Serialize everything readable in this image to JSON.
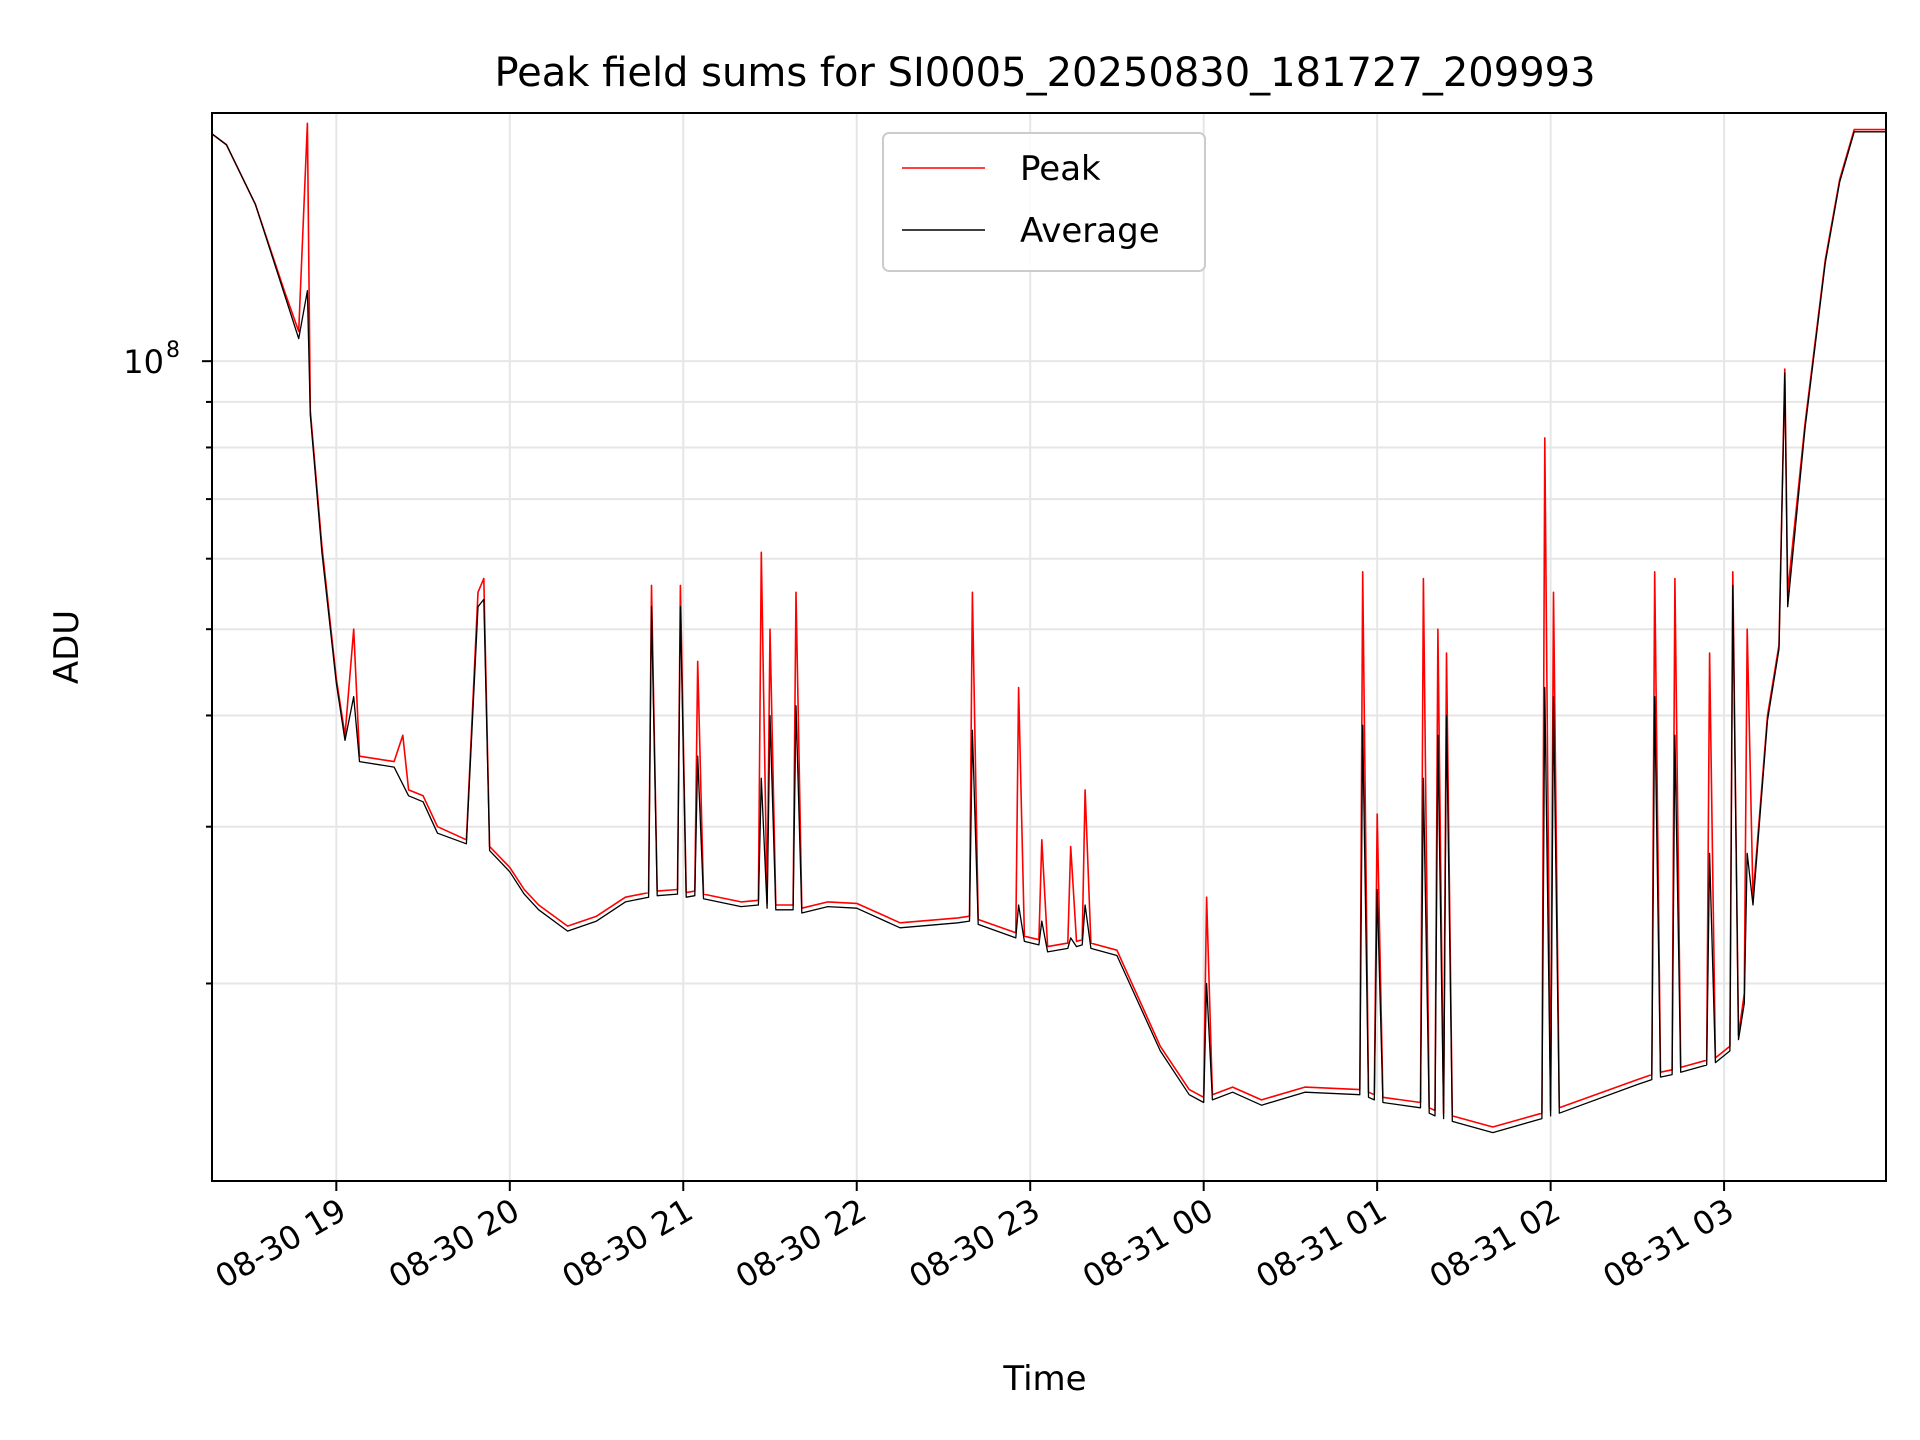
{
  "chart_data": {
    "type": "line",
    "title": "Peak field sums for SI0005_20250830_181727_209993",
    "xlabel": "Time",
    "ylabel": "ADU",
    "y_scale": "log",
    "ylim": [
      12000000,
      190000000
    ],
    "xlim": [
      "2025-08-30 18:17",
      "2025-08-31 03:56"
    ],
    "grid": true,
    "legend_position": "upper center",
    "x_ticks": [
      "08-30 19",
      "08-30 20",
      "08-30 21",
      "08-30 22",
      "08-30 23",
      "08-31 00",
      "08-31 01",
      "08-31 02",
      "08-31 03"
    ],
    "x_tick_times": [
      "2025-08-30 19:00",
      "2025-08-30 20:00",
      "2025-08-30 21:00",
      "2025-08-30 22:00",
      "2025-08-30 23:00",
      "2025-08-31 00:00",
      "2025-08-31 01:00",
      "2025-08-31 02:00",
      "2025-08-31 03:00"
    ],
    "y_major_ticks": [
      {
        "value": 100000000,
        "label_base": "10",
        "label_exp": "8"
      }
    ],
    "series": [
      {
        "name": "Peak",
        "color": "#ff0000",
        "points": [
          [
            "2025-08-30 18:17",
            180000000
          ],
          [
            "2025-08-30 18:22",
            175000000
          ],
          [
            "2025-08-30 18:32",
            150000000
          ],
          [
            "2025-08-30 18:42",
            120000000
          ],
          [
            "2025-08-30 18:47",
            108000000
          ],
          [
            "2025-08-30 18:50",
            185000000
          ],
          [
            "2025-08-30 18:51",
            88000000
          ],
          [
            "2025-08-30 18:55",
            62000000
          ],
          [
            "2025-08-30 19:00",
            44000000
          ],
          [
            "2025-08-30 19:03",
            38000000
          ],
          [
            "2025-08-30 19:06",
            50000000
          ],
          [
            "2025-08-30 19:08",
            36000000
          ],
          [
            "2025-08-30 19:20",
            35500000
          ],
          [
            "2025-08-30 19:23",
            38000000
          ],
          [
            "2025-08-30 19:25",
            33000000
          ],
          [
            "2025-08-30 19:30",
            32500000
          ],
          [
            "2025-08-30 19:35",
            30000000
          ],
          [
            "2025-08-30 19:45",
            29000000
          ],
          [
            "2025-08-30 19:49",
            55000000
          ],
          [
            "2025-08-30 19:51",
            57000000
          ],
          [
            "2025-08-30 19:53",
            28500000
          ],
          [
            "2025-08-30 20:00",
            27000000
          ],
          [
            "2025-08-30 20:05",
            25500000
          ],
          [
            "2025-08-30 20:10",
            24500000
          ],
          [
            "2025-08-30 20:20",
            23200000
          ],
          [
            "2025-08-30 20:30",
            23800000
          ],
          [
            "2025-08-30 20:40",
            25000000
          ],
          [
            "2025-08-30 20:48",
            25300000
          ],
          [
            "2025-08-30 20:49",
            56000000
          ],
          [
            "2025-08-30 20:51",
            25400000
          ],
          [
            "2025-08-30 20:58",
            25500000
          ],
          [
            "2025-08-30 20:59",
            56000000
          ],
          [
            "2025-08-30 21:01",
            25300000
          ],
          [
            "2025-08-30 21:04",
            25400000
          ],
          [
            "2025-08-30 21:05",
            46000000
          ],
          [
            "2025-08-30 21:07",
            25200000
          ],
          [
            "2025-08-30 21:20",
            24700000
          ],
          [
            "2025-08-30 21:26",
            24800000
          ],
          [
            "2025-08-30 21:27",
            61000000
          ],
          [
            "2025-08-30 21:29",
            24600000
          ],
          [
            "2025-08-30 21:30",
            50000000
          ],
          [
            "2025-08-30 21:32",
            24500000
          ],
          [
            "2025-08-30 21:38",
            24500000
          ],
          [
            "2025-08-30 21:39",
            55000000
          ],
          [
            "2025-08-30 21:41",
            24300000
          ],
          [
            "2025-08-30 21:50",
            24700000
          ],
          [
            "2025-08-30 22:00",
            24600000
          ],
          [
            "2025-08-30 22:15",
            23400000
          ],
          [
            "2025-08-30 22:35",
            23700000
          ],
          [
            "2025-08-30 22:39",
            23800000
          ],
          [
            "2025-08-30 22:40",
            55000000
          ],
          [
            "2025-08-30 22:42",
            23600000
          ],
          [
            "2025-08-30 22:55",
            22800000
          ],
          [
            "2025-08-30 22:56",
            43000000
          ],
          [
            "2025-08-30 22:58",
            22600000
          ],
          [
            "2025-08-30 23:03",
            22400000
          ],
          [
            "2025-08-30 23:04",
            29000000
          ],
          [
            "2025-08-30 23:06",
            22000000
          ],
          [
            "2025-08-30 23:13",
            22200000
          ],
          [
            "2025-08-30 23:14",
            28500000
          ],
          [
            "2025-08-30 23:16",
            22300000
          ],
          [
            "2025-08-30 23:18",
            22400000
          ],
          [
            "2025-08-30 23:19",
            33000000
          ],
          [
            "2025-08-30 23:21",
            22200000
          ],
          [
            "2025-08-30 23:30",
            21800000
          ],
          [
            "2025-08-30 23:45",
            17000000
          ],
          [
            "2025-08-30 23:55",
            15200000
          ],
          [
            "2025-08-31 00:00",
            14900000
          ],
          [
            "2025-08-31 00:01",
            25000000
          ],
          [
            "2025-08-31 00:03",
            15000000
          ],
          [
            "2025-08-31 00:10",
            15300000
          ],
          [
            "2025-08-31 00:20",
            14800000
          ],
          [
            "2025-08-31 00:35",
            15300000
          ],
          [
            "2025-08-31 00:54",
            15200000
          ],
          [
            "2025-08-31 00:55",
            58000000
          ],
          [
            "2025-08-31 00:57",
            15100000
          ],
          [
            "2025-08-31 00:59",
            15000000
          ],
          [
            "2025-08-31 01:00",
            31000000
          ],
          [
            "2025-08-31 01:02",
            14900000
          ],
          [
            "2025-08-31 01:15",
            14700000
          ],
          [
            "2025-08-31 01:16",
            57000000
          ],
          [
            "2025-08-31 01:18",
            14500000
          ],
          [
            "2025-08-31 01:20",
            14400000
          ],
          [
            "2025-08-31 01:21",
            50000000
          ],
          [
            "2025-08-31 01:23",
            14300000
          ],
          [
            "2025-08-31 01:24",
            47000000
          ],
          [
            "2025-08-31 01:26",
            14200000
          ],
          [
            "2025-08-31 01:40",
            13800000
          ],
          [
            "2025-08-31 01:57",
            14300000
          ],
          [
            "2025-08-31 01:58",
            82000000
          ],
          [
            "2025-08-31 02:00",
            14400000
          ],
          [
            "2025-08-31 02:01",
            55000000
          ],
          [
            "2025-08-31 02:03",
            14500000
          ],
          [
            "2025-08-31 02:30",
            15600000
          ],
          [
            "2025-08-31 02:35",
            15800000
          ],
          [
            "2025-08-31 02:36",
            58000000
          ],
          [
            "2025-08-31 02:38",
            15900000
          ],
          [
            "2025-08-31 02:42",
            16000000
          ],
          [
            "2025-08-31 02:43",
            57000000
          ],
          [
            "2025-08-31 02:45",
            16100000
          ],
          [
            "2025-08-31 02:54",
            16400000
          ],
          [
            "2025-08-31 02:55",
            47000000
          ],
          [
            "2025-08-31 02:57",
            16500000
          ],
          [
            "2025-08-31 03:02",
            17000000
          ],
          [
            "2025-08-31 03:03",
            58000000
          ],
          [
            "2025-08-31 03:05",
            17500000
          ],
          [
            "2025-08-31 03:07",
            19500000
          ],
          [
            "2025-08-31 03:08",
            50000000
          ],
          [
            "2025-08-31 03:10",
            25000000
          ],
          [
            "2025-08-31 03:15",
            40000000
          ],
          [
            "2025-08-31 03:19",
            48000000
          ],
          [
            "2025-08-31 03:21",
            98000000
          ],
          [
            "2025-08-31 03:22",
            55000000
          ],
          [
            "2025-08-31 03:28",
            85000000
          ],
          [
            "2025-08-31 03:35",
            130000000
          ],
          [
            "2025-08-31 03:40",
            160000000
          ],
          [
            "2025-08-31 03:45",
            182000000
          ],
          [
            "2025-08-31 03:56",
            182000000
          ]
        ]
      },
      {
        "name": "Average",
        "color": "#000000",
        "points": [
          [
            "2025-08-30 18:17",
            180000000
          ],
          [
            "2025-08-30 18:22",
            175000000
          ],
          [
            "2025-08-30 18:32",
            150000000
          ],
          [
            "2025-08-30 18:42",
            119000000
          ],
          [
            "2025-08-30 18:47",
            106000000
          ],
          [
            "2025-08-30 18:50",
            120000000
          ],
          [
            "2025-08-30 18:51",
            87000000
          ],
          [
            "2025-08-30 18:55",
            61000000
          ],
          [
            "2025-08-30 19:00",
            43500000
          ],
          [
            "2025-08-30 19:03",
            37500000
          ],
          [
            "2025-08-30 19:06",
            42000000
          ],
          [
            "2025-08-30 19:08",
            35500000
          ],
          [
            "2025-08-30 19:20",
            35000000
          ],
          [
            "2025-08-30 19:25",
            32500000
          ],
          [
            "2025-08-30 19:30",
            32000000
          ],
          [
            "2025-08-30 19:35",
            29500000
          ],
          [
            "2025-08-30 19:45",
            28700000
          ],
          [
            "2025-08-30 19:49",
            53000000
          ],
          [
            "2025-08-30 19:51",
            54000000
          ],
          [
            "2025-08-30 19:53",
            28200000
          ],
          [
            "2025-08-30 20:00",
            26700000
          ],
          [
            "2025-08-30 20:05",
            25200000
          ],
          [
            "2025-08-30 20:10",
            24200000
          ],
          [
            "2025-08-30 20:20",
            22900000
          ],
          [
            "2025-08-30 20:30",
            23500000
          ],
          [
            "2025-08-30 20:40",
            24700000
          ],
          [
            "2025-08-30 20:48",
            25000000
          ],
          [
            "2025-08-30 20:49",
            53000000
          ],
          [
            "2025-08-30 20:51",
            25100000
          ],
          [
            "2025-08-30 20:58",
            25200000
          ],
          [
            "2025-08-30 20:59",
            53000000
          ],
          [
            "2025-08-30 21:01",
            25000000
          ],
          [
            "2025-08-30 21:04",
            25100000
          ],
          [
            "2025-08-30 21:05",
            36000000
          ],
          [
            "2025-08-30 21:07",
            24900000
          ],
          [
            "2025-08-30 21:20",
            24400000
          ],
          [
            "2025-08-30 21:26",
            24500000
          ],
          [
            "2025-08-30 21:27",
            34000000
          ],
          [
            "2025-08-30 21:29",
            24300000
          ],
          [
            "2025-08-30 21:30",
            40000000
          ],
          [
            "2025-08-30 21:32",
            24200000
          ],
          [
            "2025-08-30 21:38",
            24200000
          ],
          [
            "2025-08-30 21:39",
            41000000
          ],
          [
            "2025-08-30 21:41",
            24000000
          ],
          [
            "2025-08-30 21:50",
            24400000
          ],
          [
            "2025-08-30 22:00",
            24300000
          ],
          [
            "2025-08-30 22:15",
            23100000
          ],
          [
            "2025-08-30 22:35",
            23400000
          ],
          [
            "2025-08-30 22:39",
            23500000
          ],
          [
            "2025-08-30 22:40",
            38500000
          ],
          [
            "2025-08-30 22:42",
            23300000
          ],
          [
            "2025-08-30 22:55",
            22500000
          ],
          [
            "2025-08-30 22:56",
            24500000
          ],
          [
            "2025-08-30 22:58",
            22300000
          ],
          [
            "2025-08-30 23:03",
            22100000
          ],
          [
            "2025-08-30 23:04",
            23500000
          ],
          [
            "2025-08-30 23:06",
            21700000
          ],
          [
            "2025-08-30 23:13",
            21900000
          ],
          [
            "2025-08-30 23:14",
            22500000
          ],
          [
            "2025-08-30 23:16",
            22000000
          ],
          [
            "2025-08-30 23:18",
            22100000
          ],
          [
            "2025-08-30 23:19",
            24500000
          ],
          [
            "2025-08-30 23:21",
            21900000
          ],
          [
            "2025-08-30 23:30",
            21500000
          ],
          [
            "2025-08-30 23:45",
            16800000
          ],
          [
            "2025-08-30 23:55",
            15000000
          ],
          [
            "2025-08-31 00:00",
            14700000
          ],
          [
            "2025-08-31 00:01",
            20000000
          ],
          [
            "2025-08-31 00:03",
            14800000
          ],
          [
            "2025-08-31 00:10",
            15100000
          ],
          [
            "2025-08-31 00:20",
            14600000
          ],
          [
            "2025-08-31 00:35",
            15100000
          ],
          [
            "2025-08-31 00:54",
            15000000
          ],
          [
            "2025-08-31 00:55",
            39000000
          ],
          [
            "2025-08-31 00:57",
            14900000
          ],
          [
            "2025-08-31 00:59",
            14800000
          ],
          [
            "2025-08-31 01:00",
            25500000
          ],
          [
            "2025-08-31 01:02",
            14700000
          ],
          [
            "2025-08-31 01:15",
            14500000
          ],
          [
            "2025-08-31 01:16",
            34000000
          ],
          [
            "2025-08-31 01:18",
            14300000
          ],
          [
            "2025-08-31 01:20",
            14200000
          ],
          [
            "2025-08-31 01:21",
            38000000
          ],
          [
            "2025-08-31 01:23",
            14100000
          ],
          [
            "2025-08-31 01:24",
            40000000
          ],
          [
            "2025-08-31 01:26",
            14000000
          ],
          [
            "2025-08-31 01:40",
            13600000
          ],
          [
            "2025-08-31 01:57",
            14100000
          ],
          [
            "2025-08-31 01:58",
            43000000
          ],
          [
            "2025-08-31 02:00",
            14200000
          ],
          [
            "2025-08-31 02:01",
            42000000
          ],
          [
            "2025-08-31 02:03",
            14300000
          ],
          [
            "2025-08-31 02:30",
            15400000
          ],
          [
            "2025-08-31 02:35",
            15600000
          ],
          [
            "2025-08-31 02:36",
            42000000
          ],
          [
            "2025-08-31 02:38",
            15700000
          ],
          [
            "2025-08-31 02:42",
            15800000
          ],
          [
            "2025-08-31 02:43",
            38000000
          ],
          [
            "2025-08-31 02:45",
            15900000
          ],
          [
            "2025-08-31 02:54",
            16200000
          ],
          [
            "2025-08-31 02:55",
            28000000
          ],
          [
            "2025-08-31 02:57",
            16300000
          ],
          [
            "2025-08-31 03:02",
            16800000
          ],
          [
            "2025-08-31 03:03",
            56000000
          ],
          [
            "2025-08-31 03:05",
            17300000
          ],
          [
            "2025-08-31 03:07",
            19000000
          ],
          [
            "2025-08-31 03:08",
            28000000
          ],
          [
            "2025-08-31 03:10",
            24500000
          ],
          [
            "2025-08-31 03:15",
            39500000
          ],
          [
            "2025-08-31 03:19",
            47500000
          ],
          [
            "2025-08-31 03:21",
            97000000
          ],
          [
            "2025-08-31 03:22",
            53000000
          ],
          [
            "2025-08-31 03:28",
            84000000
          ],
          [
            "2025-08-31 03:35",
            129000000
          ],
          [
            "2025-08-31 03:40",
            159000000
          ],
          [
            "2025-08-31 03:45",
            181000000
          ],
          [
            "2025-08-31 03:56",
            181000000
          ]
        ]
      }
    ]
  }
}
